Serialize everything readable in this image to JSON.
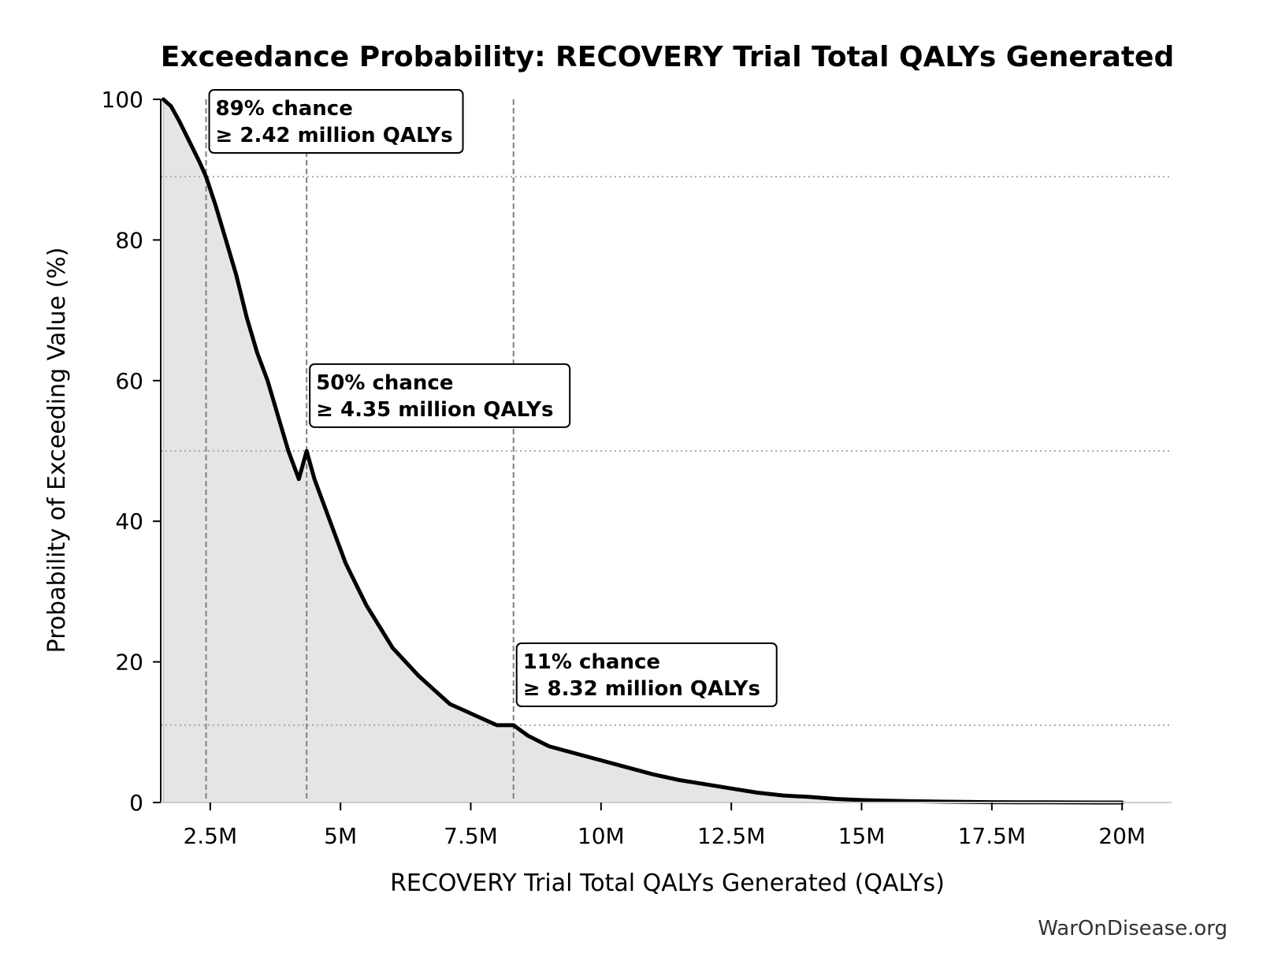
{
  "chart_data": {
    "type": "area",
    "title": "Exceedance Probability: RECOVERY Trial Total QALYs Generated",
    "xlabel": "RECOVERY Trial Total QALYs Generated (QALYs)",
    "ylabel": "Probability of Exceeding Value (%)",
    "xlim": [
      1.55,
      20.95
    ],
    "ylim": [
      0,
      100
    ],
    "x_unit": "million QALYs",
    "x_ticks": [
      2.5,
      5,
      7.5,
      10,
      12.5,
      15,
      17.5,
      20
    ],
    "x_tick_labels": [
      "2.5M",
      "5M",
      "7.5M",
      "10M",
      "12.5M",
      "15M",
      "17.5M",
      "20M"
    ],
    "y_ticks": [
      0,
      20,
      40,
      60,
      80,
      100
    ],
    "y_tick_labels": [
      "0",
      "20",
      "40",
      "60",
      "80",
      "100"
    ],
    "grid": false,
    "fill_color": "#e5e5e5",
    "line_color": "#000000",
    "reference_line_color": "#808080",
    "series": [
      {
        "x": [
          1.6,
          1.75,
          1.9,
          2.1,
          2.3,
          2.42,
          2.6,
          2.8,
          3.0,
          3.2,
          3.4,
          3.6,
          3.8,
          4.0,
          4.2,
          4.35,
          4.5,
          4.7,
          4.9,
          5.1,
          5.3,
          5.5,
          5.75,
          6.0,
          6.25,
          6.5,
          6.8,
          7.1,
          7.4,
          7.7,
          8.0,
          8.32,
          8.6,
          9.0,
          9.5,
          10.0,
          10.5,
          11.0,
          11.5,
          12.0,
          12.5,
          13.0,
          13.5,
          14.0,
          14.5,
          15.0,
          15.5,
          16.0,
          16.5,
          17.0,
          17.5,
          18.0,
          18.5,
          19.0,
          19.5,
          20.0
        ],
        "y": [
          100,
          99,
          97,
          94,
          91,
          89,
          85,
          80,
          75,
          69,
          64,
          60,
          55,
          50,
          46,
          50,
          46,
          42,
          38,
          34,
          31,
          28,
          25,
          22,
          20,
          18,
          16,
          14,
          13,
          12,
          11,
          11,
          9.5,
          8,
          7,
          6,
          5,
          4,
          3.2,
          2.6,
          2.0,
          1.4,
          1.0,
          0.8,
          0.5,
          0.35,
          0.25,
          0.18,
          0.12,
          0.08,
          0.05,
          0.03,
          0.02,
          0.01,
          0.005,
          0.0
        ]
      }
    ],
    "reference_lines": {
      "vertical_x": [
        2.42,
        4.35,
        8.32
      ],
      "horizontal_y": [
        89,
        50,
        11
      ]
    },
    "annotations": [
      {
        "line1": "89% chance",
        "line2": "≥ 2.42 million QALYs",
        "x": 2.42,
        "y": 89
      },
      {
        "line1": "50% chance",
        "line2": "≥ 4.35 million QALYs",
        "x": 4.35,
        "y": 50
      },
      {
        "line1": "11% chance",
        "line2": "≥ 8.32 million QALYs",
        "x": 8.32,
        "y": 11
      }
    ]
  },
  "watermark": "WarOnDisease.org"
}
